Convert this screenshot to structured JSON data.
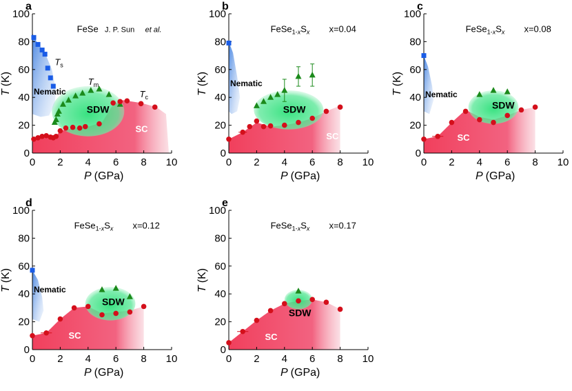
{
  "figure": {
    "xlabel_var": "P",
    "xlabel_unit": "(GPa)",
    "ylabel_var": "T",
    "ylabel_unit": "(K)"
  },
  "chart_data": [
    {
      "type": "scatter",
      "panel": "a",
      "title": "FeSe",
      "citation_author": "J. P. Sun",
      "citation_etal": "et al.",
      "xlabel": "P (GPa)",
      "ylabel": "T (K)",
      "xlim": [
        0,
        10
      ],
      "ylim": [
        0,
        100
      ],
      "xticks": [
        0,
        2,
        4,
        6,
        8,
        10
      ],
      "yticks": [
        0,
        20,
        40,
        60,
        80,
        100
      ],
      "region_labels": {
        "nematic": "Nematic",
        "sdw": "SDW",
        "sc": "SC"
      },
      "series_labels": {
        "ts_main": "T",
        "ts_sub": "s",
        "tm_main": "T",
        "tm_sub": "m",
        "tc_main": "T",
        "tc_sub": "c"
      },
      "series": [
        {
          "name": "Ts",
          "marker": "square",
          "color": "#1a5ce6",
          "x": [
            0.1,
            0.4,
            0.7,
            0.9,
            1.1,
            1.3,
            1.5
          ],
          "y": [
            83,
            78,
            74,
            71,
            61,
            54,
            48
          ]
        },
        {
          "name": "Tm",
          "marker": "triangle",
          "color": "#1b8a1b",
          "x": [
            1.6,
            1.7,
            1.8,
            1.9,
            2.2,
            2.6,
            3.1,
            3.6,
            4.2,
            4.8,
            5.5,
            6.3
          ],
          "y": [
            22,
            24,
            28,
            30,
            35,
            38,
            41,
            43,
            45,
            46,
            42,
            35
          ]
        },
        {
          "name": "Tc",
          "marker": "circle",
          "color": "#d40f1b",
          "x": [
            0.1,
            0.4,
            0.7,
            1.0,
            1.3,
            1.5,
            1.7,
            2.0,
            2.4,
            2.9,
            3.4,
            3.8,
            4.8,
            5.8,
            6.3,
            6.8,
            7.8,
            8.8
          ],
          "y": [
            10,
            11,
            12,
            12.5,
            11.5,
            11,
            12,
            16,
            18,
            18.5,
            18,
            19,
            21,
            36,
            37,
            37.5,
            35.5,
            33
          ]
        }
      ]
    },
    {
      "type": "scatter",
      "panel": "b",
      "title": "FeSe1-xSx",
      "composition_x": "x=0.04",
      "xlabel": "P (GPa)",
      "ylabel": "T (K)",
      "xlim": [
        0,
        10
      ],
      "ylim": [
        0,
        100
      ],
      "xticks": [
        0,
        2,
        4,
        6,
        8,
        10
      ],
      "yticks": [
        0,
        20,
        40,
        60,
        80,
        100
      ],
      "region_labels": {
        "nematic": "Nematic",
        "sdw": "SDW",
        "sc": "SC"
      },
      "series": [
        {
          "name": "Ts",
          "marker": "square",
          "color": "#1a5ce6",
          "x": [
            0
          ],
          "y": [
            79
          ]
        },
        {
          "name": "Tm",
          "marker": "triangle",
          "color": "#1b8a1b",
          "x": [
            2.0,
            2.5,
            3.0,
            3.5,
            4.0,
            5.0,
            6.0
          ],
          "y": [
            34,
            37,
            40,
            42,
            45,
            55,
            56
          ],
          "yerr": [
            0,
            0,
            0,
            0,
            8,
            7,
            8
          ]
        },
        {
          "name": "Tc",
          "marker": "circle",
          "color": "#d40f1b",
          "x": [
            0,
            1.0,
            1.5,
            2.0,
            2.5,
            3.0,
            4.0,
            5.0,
            6.0,
            7.0,
            8.0
          ],
          "y": [
            10,
            15,
            19,
            23,
            19,
            19.5,
            20,
            22,
            25,
            30,
            33
          ],
          "xerr": [
            0,
            0.3,
            0,
            0,
            0,
            0,
            0,
            0,
            0,
            0,
            0
          ]
        }
      ]
    },
    {
      "type": "scatter",
      "panel": "c",
      "title": "FeSe1-xSx",
      "composition_x": "x=0.08",
      "xlabel": "P (GPa)",
      "ylabel": "T (K)",
      "xlim": [
        0,
        10
      ],
      "ylim": [
        0,
        100
      ],
      "xticks": [
        0,
        2,
        4,
        6,
        8,
        10
      ],
      "yticks": [
        0,
        20,
        40,
        60,
        80,
        100
      ],
      "region_labels": {
        "nematic": "Nematic",
        "sdw": "SDW",
        "sc": "SC"
      },
      "series": [
        {
          "name": "Ts",
          "marker": "square",
          "color": "#1a5ce6",
          "x": [
            0
          ],
          "y": [
            70
          ]
        },
        {
          "name": "Tm",
          "marker": "triangle",
          "color": "#1b8a1b",
          "x": [
            4.0,
            5.0,
            6.0
          ],
          "y": [
            42,
            45,
            44
          ]
        },
        {
          "name": "Tc",
          "marker": "circle",
          "color": "#d40f1b",
          "x": [
            0,
            1.0,
            2.0,
            3.0,
            4.0,
            5.0,
            6.0,
            7.0,
            8.0
          ],
          "y": [
            10,
            12,
            22,
            30,
            24,
            22,
            27,
            31,
            33
          ],
          "xerr": [
            0,
            0.4,
            0,
            0,
            0,
            0,
            0,
            0,
            0
          ]
        }
      ]
    },
    {
      "type": "scatter",
      "panel": "d",
      "title": "FeSe1-xSx",
      "composition_x": "x=0.12",
      "xlabel": "P (GPa)",
      "ylabel": "T (K)",
      "xlim": [
        0,
        10
      ],
      "ylim": [
        0,
        100
      ],
      "xticks": [
        0,
        2,
        4,
        6,
        8,
        10
      ],
      "yticks": [
        0,
        20,
        40,
        60,
        80,
        100
      ],
      "region_labels": {
        "nematic": "Nematic",
        "sdw": "SDW",
        "sc": "SC"
      },
      "series": [
        {
          "name": "Ts",
          "marker": "square",
          "color": "#1a5ce6",
          "x": [
            0
          ],
          "y": [
            57
          ]
        },
        {
          "name": "Tm",
          "marker": "triangle",
          "color": "#1b8a1b",
          "x": [
            5.0,
            6.0,
            7.0
          ],
          "y": [
            43,
            44,
            38
          ]
        },
        {
          "name": "Tc",
          "marker": "circle",
          "color": "#d40f1b",
          "x": [
            0,
            1.0,
            2.0,
            3.0,
            4.0,
            5.0,
            6.0,
            7.0,
            8.0
          ],
          "y": [
            10,
            12,
            22,
            30,
            31,
            25,
            26,
            27,
            31
          ],
          "xerr": [
            0,
            0.4,
            0,
            0,
            0,
            0,
            0,
            0,
            0
          ]
        }
      ]
    },
    {
      "type": "scatter",
      "panel": "e",
      "title": "FeSe1-xSx",
      "composition_x": "x=0.17",
      "xlabel": "P (GPa)",
      "ylabel": "T (K)",
      "xlim": [
        0,
        10
      ],
      "ylim": [
        0,
        100
      ],
      "xticks": [
        0,
        2,
        4,
        6,
        8,
        10
      ],
      "yticks": [
        0,
        20,
        40,
        60,
        80,
        100
      ],
      "region_labels": {
        "sdw": "SDW",
        "sc": "SC"
      },
      "series": [
        {
          "name": "Tm",
          "marker": "triangle",
          "color": "#1b8a1b",
          "x": [
            5.0
          ],
          "y": [
            42
          ]
        },
        {
          "name": "Tc",
          "marker": "circle",
          "color": "#d40f1b",
          "x": [
            0,
            1.0,
            2.0,
            3.0,
            4.0,
            5.0,
            6.0,
            7.0,
            8.0
          ],
          "y": [
            5,
            13,
            21,
            28,
            33,
            35,
            36,
            34,
            29
          ],
          "xerr": [
            0,
            0.4,
            0,
            0,
            0,
            0,
            0,
            0,
            0
          ]
        }
      ]
    }
  ]
}
